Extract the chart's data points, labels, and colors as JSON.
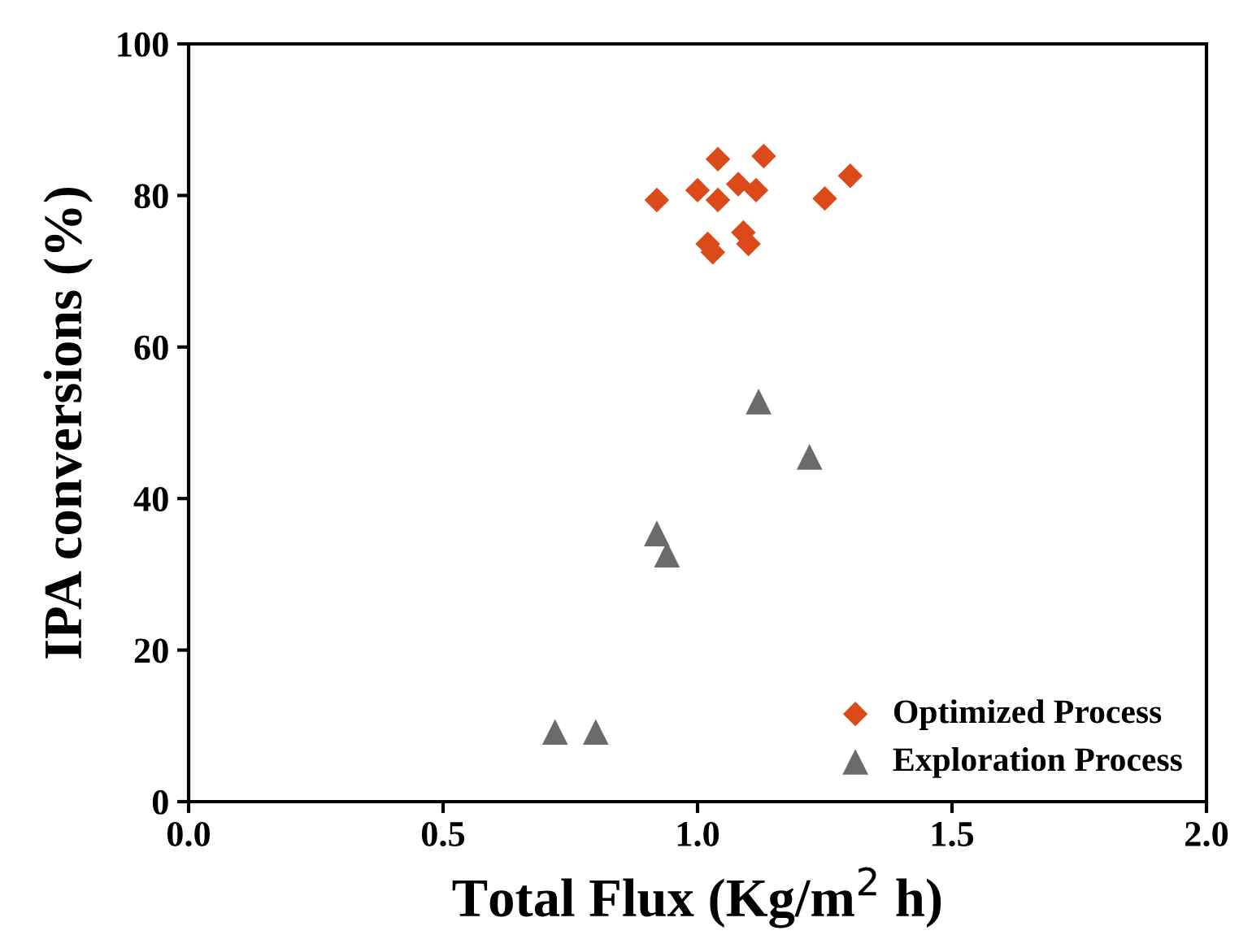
{
  "chart_data": {
    "type": "scatter",
    "xlabel": "Total Flux (Kg/m$^{2}$ h)",
    "ylabel": "IPA conversions (%)",
    "xlim": [
      0,
      2
    ],
    "xticks": [
      {
        "value": 0,
        "label": "0.0"
      },
      {
        "value": 0.5,
        "label": "0.5"
      },
      {
        "value": 1,
        "label": "1.0"
      },
      {
        "value": 1.5,
        "label": "1.5"
      },
      {
        "value": 2,
        "label": "2.0"
      }
    ],
    "ylim": [
      0,
      100
    ],
    "yticks": [
      0,
      20,
      40,
      60,
      80,
      100
    ],
    "grid": false,
    "legend": "bottom right",
    "series": [
      {
        "name": "Optimized Process",
        "color": "#dd4a1a",
        "marker": "diamond",
        "x": [
          0.92,
          1.0,
          1.04,
          1.08,
          1.115,
          1.25,
          1.3,
          1.03,
          1.02,
          1.09,
          1.1,
          1.04,
          1.13
        ],
        "values": [
          79.4,
          80.7,
          79.4,
          81.5,
          80.7,
          79.6,
          82.6,
          72.5,
          73.6,
          75.1,
          73.6,
          84.8,
          85.2
        ]
      },
      {
        "name": "Exploration Process",
        "color": "#6b6b6b",
        "marker": "triangle",
        "x": [
          1.12,
          1.22,
          0.92,
          0.94,
          0.72,
          0.8
        ],
        "values": [
          52.8,
          45.5,
          35.4,
          32.6,
          9.2,
          9.2
        ]
      }
    ]
  }
}
